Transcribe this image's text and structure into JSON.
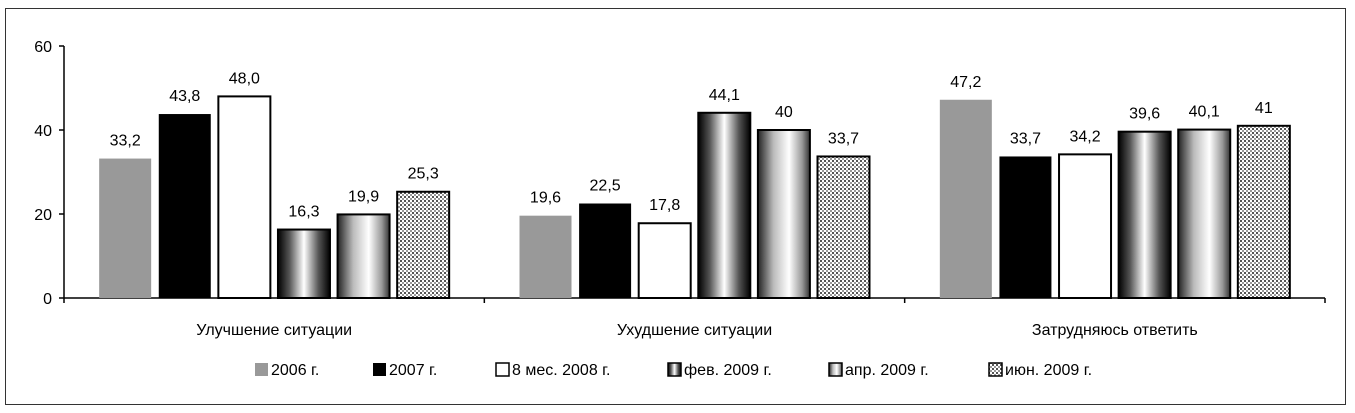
{
  "chart_data": {
    "type": "bar",
    "title": "",
    "xlabel": "",
    "ylabel": "",
    "ylim": [
      0,
      60
    ],
    "yticks": [
      0,
      20,
      40,
      60
    ],
    "grid": false,
    "legend_position": "bottom",
    "categories": [
      "Улучшение ситуации",
      "Ухудшение ситуации",
      "Затрудняюсь ответить"
    ],
    "series": [
      {
        "name": "2006 г.",
        "fill": "solid-gray",
        "color": "#999999",
        "values": [
          33.2,
          19.6,
          47.2
        ],
        "labels": [
          "33,2",
          "19,6",
          "47,2"
        ]
      },
      {
        "name": "2007 г.",
        "fill": "solid-black",
        "color": "#000000",
        "values": [
          43.8,
          22.5,
          33.7
        ],
        "labels": [
          "43,8",
          "22,5",
          "33,7"
        ]
      },
      {
        "name": "8 мес. 2008 г.",
        "fill": "white",
        "color": "#ffffff",
        "values": [
          48.0,
          17.8,
          34.2
        ],
        "labels": [
          "48,0",
          "17,8",
          "34,2"
        ]
      },
      {
        "name": "фев. 2009 г.",
        "fill": "gradient-dark",
        "color": "#444444",
        "values": [
          16.3,
          44.1,
          39.6
        ],
        "labels": [
          "16,3",
          "44,1",
          "39,6"
        ]
      },
      {
        "name": "апр. 2009 г.",
        "fill": "gradient-light",
        "color": "#888888",
        "values": [
          19.9,
          40,
          40.1
        ],
        "labels": [
          "19,9",
          "40",
          "40,1"
        ]
      },
      {
        "name": "июн. 2009 г.",
        "fill": "dots",
        "color": "#bbbbbb",
        "values": [
          25.3,
          33.7,
          41
        ],
        "labels": [
          "25,3",
          "33,7",
          "41"
        ]
      }
    ]
  }
}
